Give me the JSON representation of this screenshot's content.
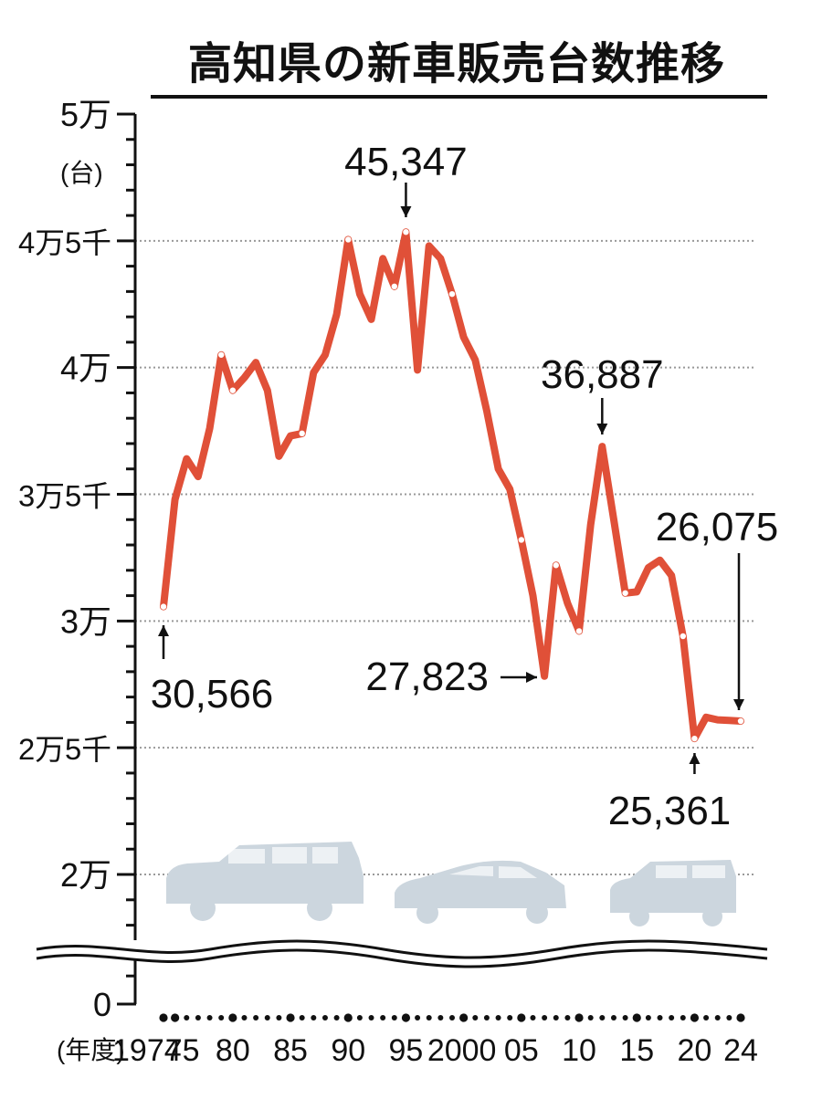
{
  "title": "高知県の新車販売台数推移",
  "y_unit": "(台)",
  "x_unit": "(年度)",
  "colors": {
    "line": "#e05038",
    "grid": "#999999",
    "car": "#ccd6de",
    "axis": "#111111"
  },
  "icons": [
    "suv-car-icon",
    "sedan-car-icon",
    "kei-car-icon"
  ],
  "chart_data": {
    "type": "line",
    "title": "高知県の新車販売台数推移",
    "xlabel": "(年度)",
    "ylabel": "(台)",
    "ylim": [
      20000,
      50000
    ],
    "y_ticks": [
      {
        "value": 50000,
        "label": "5万"
      },
      {
        "value": 45000,
        "label": "4万5千"
      },
      {
        "value": 40000,
        "label": "4万"
      },
      {
        "value": 35000,
        "label": "3万5千"
      },
      {
        "value": 30000,
        "label": "3万"
      },
      {
        "value": 25000,
        "label": "2万5千"
      },
      {
        "value": 20000,
        "label": "2万"
      }
    ],
    "y_zero_label": "0",
    "x_tick_labels": [
      {
        "year": 1974,
        "label": "1974"
      },
      {
        "year": 1975,
        "label": "75"
      },
      {
        "year": 1980,
        "label": "80"
      },
      {
        "year": 1985,
        "label": "85"
      },
      {
        "year": 1990,
        "label": "90"
      },
      {
        "year": 1995,
        "label": "95"
      },
      {
        "year": 2000,
        "label": "2000"
      },
      {
        "year": 2005,
        "label": "05"
      },
      {
        "year": 2010,
        "label": "10"
      },
      {
        "year": 2015,
        "label": "15"
      },
      {
        "year": 2020,
        "label": "20"
      },
      {
        "year": 2024,
        "label": "24"
      }
    ],
    "grid": true,
    "series": [
      {
        "x": [
          1974,
          1975,
          1976,
          1977,
          1978,
          1979,
          1980,
          1981,
          1982,
          1983,
          1984,
          1985,
          1986,
          1987,
          1988,
          1989,
          1990,
          1991,
          1992,
          1993,
          1994,
          1995,
          1996,
          1997,
          1998,
          1999,
          2000,
          2001,
          2002,
          2003,
          2004,
          2005,
          2006,
          2007,
          2008,
          2009,
          2010,
          2011,
          2012,
          2013,
          2014,
          2015,
          2016,
          2017,
          2018,
          2019,
          2020,
          2021,
          2022,
          2023,
          2024
        ],
        "values": [
          30566,
          34800,
          36400,
          35700,
          37600,
          40500,
          39100,
          39600,
          40200,
          39100,
          36500,
          37300,
          37400,
          39800,
          40500,
          42100,
          45050,
          42900,
          41900,
          44300,
          43200,
          45347,
          39900,
          44800,
          44300,
          42900,
          41200,
          40300,
          38300,
          36000,
          35200,
          33200,
          31000,
          27823,
          32200,
          30700,
          29600,
          33800,
          36887,
          34000,
          31100,
          31150,
          32100,
          32400,
          31800,
          29400,
          25361,
          26200,
          26100,
          26075,
          26050
        ]
      }
    ],
    "highlight_points": [
      1974,
      1979,
      1980,
      1986,
      1990,
      1994,
      1995,
      1999,
      2005,
      2008,
      2010,
      2014,
      2019,
      2020,
      2024
    ],
    "annotations": [
      {
        "text": "45,347",
        "year": 1995,
        "value": 45347,
        "arrow": "down"
      },
      {
        "text": "36,887",
        "year": 2012,
        "value": 36887,
        "arrow": "down"
      },
      {
        "text": "30,566",
        "year": 1974,
        "value": 30566,
        "arrow": "up"
      },
      {
        "text": "27,823",
        "year": 2007,
        "value": 27823,
        "arrow": "right"
      },
      {
        "text": "25,361",
        "year": 2020,
        "value": 25361,
        "arrow": "up"
      },
      {
        "text": "26,075",
        "year": 2023,
        "value": 26075,
        "arrow": "down"
      }
    ]
  }
}
